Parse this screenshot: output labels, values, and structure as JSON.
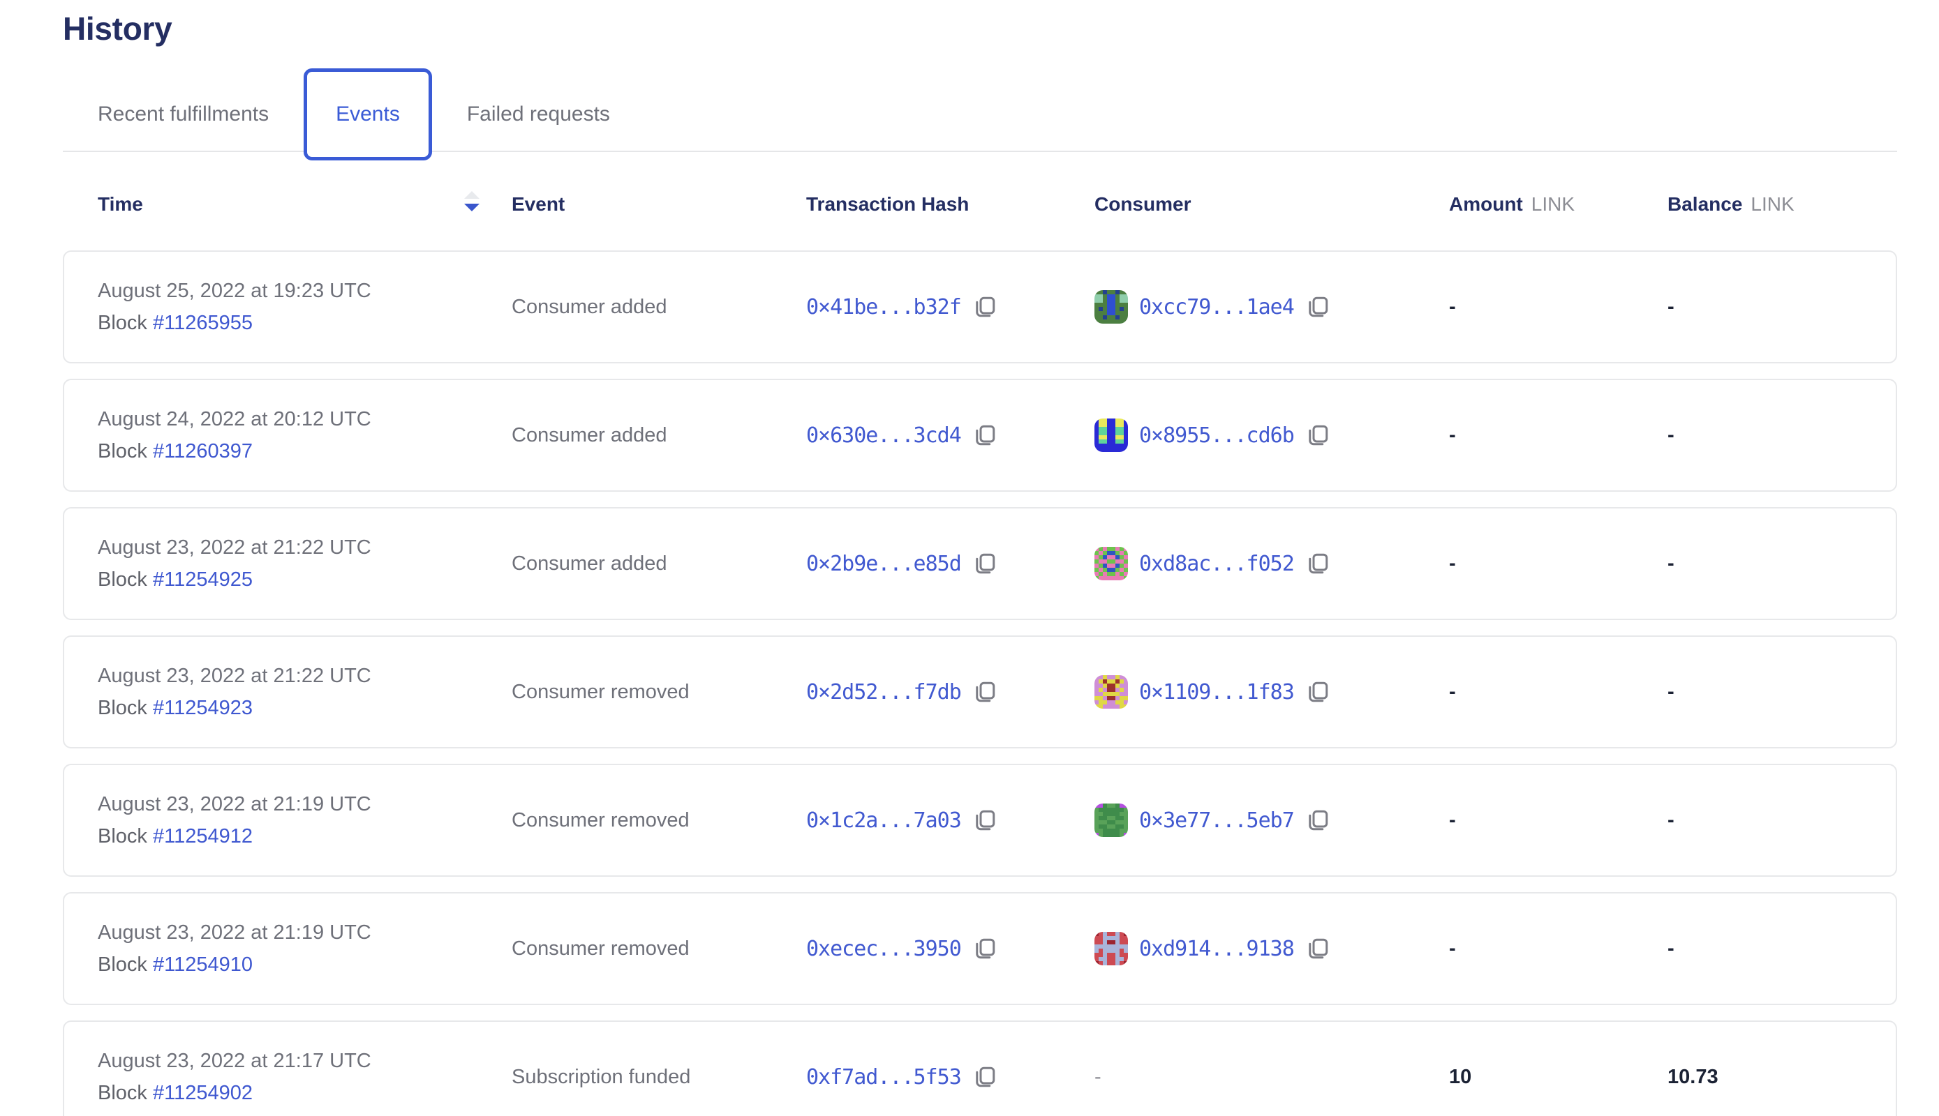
{
  "page": {
    "title": "History"
  },
  "tabs": [
    {
      "label": "Recent fulfillments",
      "active": false
    },
    {
      "label": "Events",
      "active": true
    },
    {
      "label": "Failed requests",
      "active": false
    }
  ],
  "table": {
    "columns": {
      "time": "Time",
      "event": "Event",
      "tx": "Transaction Hash",
      "consumer": "Consumer",
      "amount": "Amount",
      "amount_unit": "LINK",
      "balance": "Balance",
      "balance_unit": "LINK"
    },
    "sort": {
      "column": "Time",
      "direction": "descending"
    },
    "rows": [
      {
        "date": "August 25, 2022 at 19:23 UTC",
        "block_label": "Block",
        "block": "#11265955",
        "event": "Consumer added",
        "tx": "0×41be...b32f",
        "consumer": "0xcc79...1ae4",
        "amount": "-",
        "balance": "-",
        "avatar": {
          "palette": [
            "#4c7f41",
            "#2f4fd1",
            "#8fceab",
            "#24418f"
          ],
          "pattern": [
            "00300300",
            "22011022",
            "22011022",
            "00011000",
            "03011030",
            "00011000",
            "00300300",
            "00000000"
          ]
        }
      },
      {
        "date": "August 24, 2022 at 20:12 UTC",
        "block_label": "Block",
        "block": "#11260397",
        "event": "Consumer added",
        "tx": "0×630e...3cd4",
        "consumer": "0×8955...cd6b",
        "amount": "-",
        "balance": "-",
        "avatar": {
          "palette": [
            "#2a2ad6",
            "#e9e95c",
            "#5fd49a"
          ],
          "pattern": [
            "01100110",
            "01100110",
            "02200220",
            "02200220",
            "01100110",
            "02200220",
            "00000000",
            "00000000"
          ]
        }
      },
      {
        "date": "August 23, 2022 at 21:22 UTC",
        "block_label": "Block",
        "block": "#11254925",
        "event": "Consumer added",
        "tx": "0×2b9e...e85d",
        "consumer": "0xd8ac...f052",
        "amount": "-",
        "balance": "-",
        "avatar": {
          "palette": [
            "#6dc24d",
            "#e87ab5",
            "#2f55c2"
          ],
          "pattern": [
            "10100101",
            "01022010",
            "10211201",
            "01100110",
            "10211201",
            "01022010",
            "10100101",
            "01111110"
          ]
        }
      },
      {
        "date": "August 23, 2022 at 21:22 UTC",
        "block_label": "Block",
        "block": "#11254923",
        "event": "Consumer removed",
        "tx": "0×2d52...f7db",
        "consumer": "0×1109...1f83",
        "amount": "-",
        "balance": "-",
        "avatar": {
          "palette": [
            "#cf8ed6",
            "#e0d844",
            "#9c312c"
          ],
          "pattern": [
            "00100100",
            "01211210",
            "00122100",
            "01022010",
            "00111100",
            "11022011",
            "01100110",
            "11000011"
          ]
        }
      },
      {
        "date": "August 23, 2022 at 21:19 UTC",
        "block_label": "Block",
        "block": "#11254912",
        "event": "Consumer removed",
        "tx": "0×1c2a...7a03",
        "consumer": "0×3e77...5eb7",
        "amount": "-",
        "balance": "-",
        "avatar": {
          "palette": [
            "#59a259",
            "#3f8c4b",
            "#b44fe0"
          ],
          "pattern": [
            "22100122",
            "01111110",
            "00111100",
            "01100110",
            "00011000",
            "01100110",
            "00111100",
            "20111102"
          ]
        }
      },
      {
        "date": "August 23, 2022 at 21:19 UTC",
        "block_label": "Block",
        "block": "#11254910",
        "event": "Consumer removed",
        "tx": "0xecec...3950",
        "consumer": "0xd914...9138",
        "amount": "-",
        "balance": "-",
        "avatar": {
          "palette": [
            "#cd4a53",
            "#a9b4da",
            "#9c2430"
          ],
          "pattern": [
            "20100102",
            "00111100",
            "00122100",
            "11111111",
            "10111101",
            "00100100",
            "01100110",
            "20100102"
          ]
        }
      },
      {
        "date": "August 23, 2022 at 21:17 UTC",
        "block_label": "Block",
        "block": "#11254902",
        "event": "Subscription funded",
        "tx": "0xf7ad...5f53",
        "consumer": "-",
        "amount": "10",
        "balance": "10.73",
        "avatar": null
      }
    ]
  },
  "colors": {
    "accent_blue": "#3a5bd6",
    "link_blue": "#3f58d0",
    "heading_navy": "#242e62",
    "body_gray": "#6e7079",
    "unit_gray": "#8c8d94",
    "value_navy": "#1b2234",
    "card_border": "#e7e8ea",
    "sort_inactive": "#e8eaed"
  }
}
